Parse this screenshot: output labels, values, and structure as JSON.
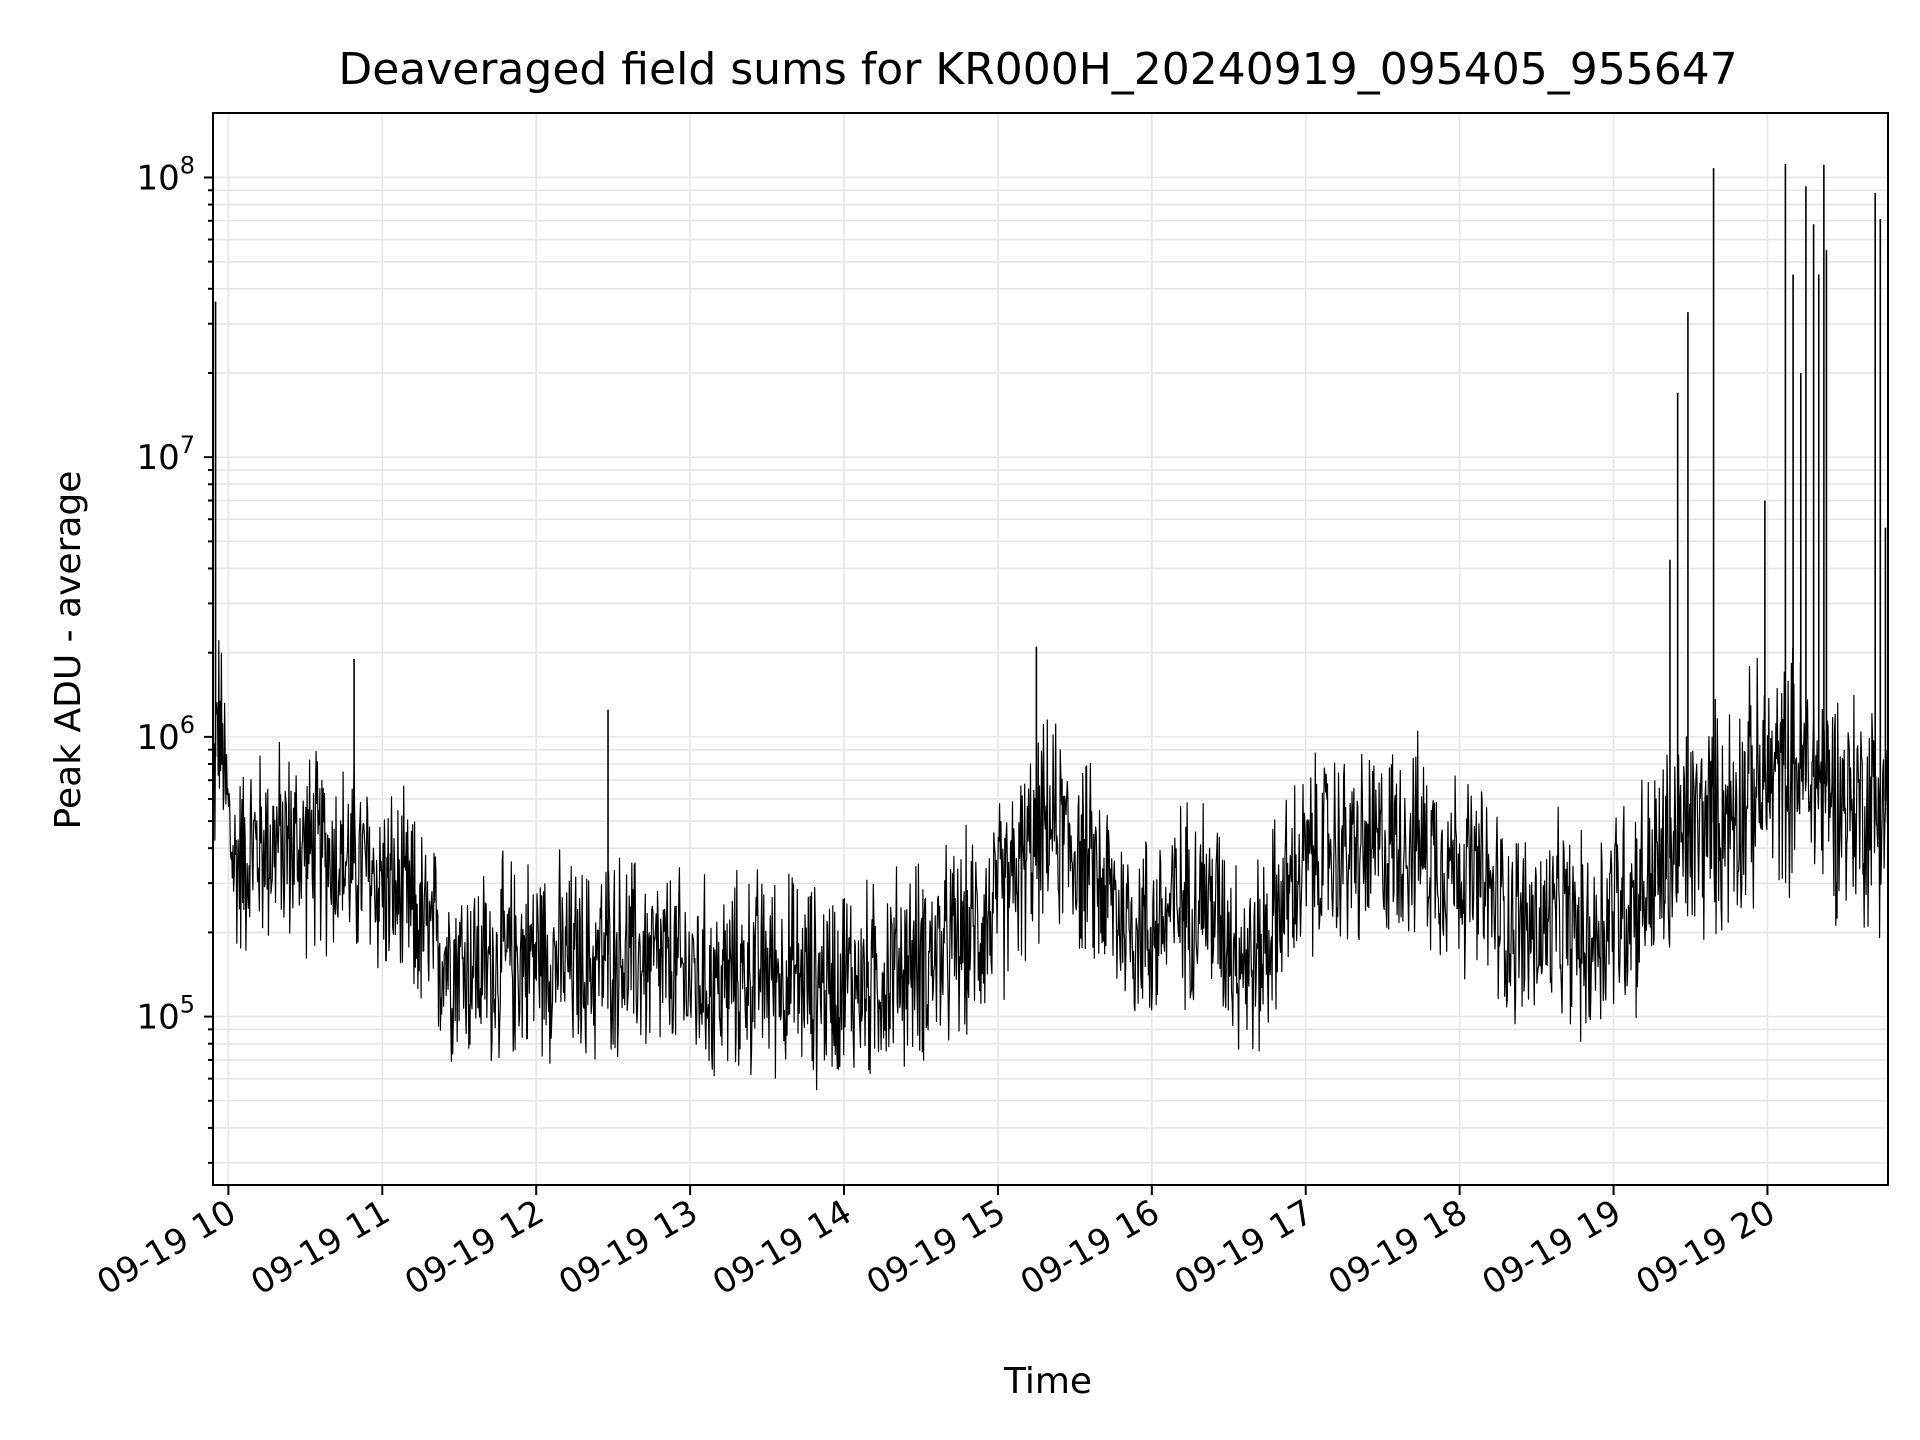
{
  "chart_data": {
    "type": "line",
    "title": "Deaveraged field sums for KR000H_20240919_095405_955647",
    "xlabel": "Time",
    "ylabel": "Peak ADU - average",
    "yscale": "log",
    "grid": true,
    "grid_minor_y": true,
    "line_color": "#000000",
    "xlim": [
      "2024-09-19 09:54",
      "2024-09-19 20:47"
    ],
    "ylim": [
      25000,
      170000000
    ],
    "x_ticks": [
      {
        "value": "2024-09-19 10:00",
        "label": "09-19 10"
      },
      {
        "value": "2024-09-19 11:00",
        "label": "09-19 11"
      },
      {
        "value": "2024-09-19 12:00",
        "label": "09-19 12"
      },
      {
        "value": "2024-09-19 13:00",
        "label": "09-19 13"
      },
      {
        "value": "2024-09-19 14:00",
        "label": "09-19 14"
      },
      {
        "value": "2024-09-19 15:00",
        "label": "09-19 15"
      },
      {
        "value": "2024-09-19 16:00",
        "label": "09-19 16"
      },
      {
        "value": "2024-09-19 17:00",
        "label": "09-19 17"
      },
      {
        "value": "2024-09-19 18:00",
        "label": "09-19 18"
      },
      {
        "value": "2024-09-19 19:00",
        "label": "09-19 19"
      },
      {
        "value": "2024-09-19 20:00",
        "label": "09-19 20"
      }
    ],
    "y_ticks": [
      {
        "value": 100000,
        "base": "10",
        "exp": "5"
      },
      {
        "value": 1000000,
        "base": "10",
        "exp": "6"
      },
      {
        "value": 10000000,
        "base": "10",
        "exp": "7"
      },
      {
        "value": 100000000,
        "base": "10",
        "exp": "8"
      }
    ],
    "series": [
      {
        "color": "#000000",
        "x": [
          "2024-09-19 09:54",
          "2024-09-19 09:56",
          "2024-09-19 09:58",
          "2024-09-19 10:02",
          "2024-09-19 10:10",
          "2024-09-19 10:20",
          "2024-09-19 10:30",
          "2024-09-19 10:40",
          "2024-09-19 10:50",
          "2024-09-19 11:00",
          "2024-09-19 11:10",
          "2024-09-19 11:20",
          "2024-09-19 11:30",
          "2024-09-19 11:40",
          "2024-09-19 11:50",
          "2024-09-19 12:00",
          "2024-09-19 12:10",
          "2024-09-19 12:20",
          "2024-09-19 12:30",
          "2024-09-19 12:40",
          "2024-09-19 12:50",
          "2024-09-19 13:00",
          "2024-09-19 13:10",
          "2024-09-19 13:20",
          "2024-09-19 13:30",
          "2024-09-19 13:40",
          "2024-09-19 13:50",
          "2024-09-19 14:00",
          "2024-09-19 14:10",
          "2024-09-19 14:20",
          "2024-09-19 14:30",
          "2024-09-19 14:40",
          "2024-09-19 14:50",
          "2024-09-19 15:00",
          "2024-09-19 15:10",
          "2024-09-19 15:20",
          "2024-09-19 15:30",
          "2024-09-19 15:40",
          "2024-09-19 15:50",
          "2024-09-19 16:00",
          "2024-09-19 16:10",
          "2024-09-19 16:20",
          "2024-09-19 16:30",
          "2024-09-19 16:40",
          "2024-09-19 16:50",
          "2024-09-19 17:00",
          "2024-09-19 17:10",
          "2024-09-19 17:20",
          "2024-09-19 17:30",
          "2024-09-19 17:40",
          "2024-09-19 17:50",
          "2024-09-19 18:00",
          "2024-09-19 18:10",
          "2024-09-19 18:20",
          "2024-09-19 18:30",
          "2024-09-19 18:40",
          "2024-09-19 18:50",
          "2024-09-19 19:00",
          "2024-09-19 19:10",
          "2024-09-19 19:20",
          "2024-09-19 19:30",
          "2024-09-19 19:40",
          "2024-09-19 19:50",
          "2024-09-19 20:00",
          "2024-09-19 20:10",
          "2024-09-19 20:20",
          "2024-09-19 20:30",
          "2024-09-19 20:40",
          "2024-09-19 20:47"
        ],
        "y": [
          600000,
          1200000,
          800000,
          350000,
          400000,
          420000,
          400000,
          380000,
          350000,
          300000,
          250000,
          180000,
          160000,
          150000,
          160000,
          170000,
          160000,
          150000,
          170000,
          160000,
          150000,
          140000,
          130000,
          140000,
          150000,
          140000,
          130000,
          140000,
          130000,
          150000,
          160000,
          170000,
          200000,
          250000,
          350000,
          500000,
          400000,
          300000,
          220000,
          200000,
          250000,
          280000,
          200000,
          150000,
          250000,
          350000,
          400000,
          380000,
          400000,
          450000,
          380000,
          350000,
          280000,
          220000,
          200000,
          220000,
          180000,
          250000,
          280000,
          350000,
          450000,
          500000,
          600000,
          700000,
          800000,
          700000,
          600000,
          550000,
          600000
        ]
      }
    ],
    "spikes": [
      {
        "x": "2024-09-19 09:55",
        "y": 36000000
      },
      {
        "x": "2024-09-19 10:49",
        "y": 1900000
      },
      {
        "x": "2024-09-19 12:28",
        "y": 1250000
      },
      {
        "x": "2024-09-19 15:15",
        "y": 2100000
      },
      {
        "x": "2024-09-19 19:22",
        "y": 4300000
      },
      {
        "x": "2024-09-19 19:25",
        "y": 17000000
      },
      {
        "x": "2024-09-19 19:29",
        "y": 33000000
      },
      {
        "x": "2024-09-19 19:39",
        "y": 108000000
      },
      {
        "x": "2024-09-19 19:59",
        "y": 7000000
      },
      {
        "x": "2024-09-19 20:07",
        "y": 112000000
      },
      {
        "x": "2024-09-19 20:10",
        "y": 45000000
      },
      {
        "x": "2024-09-19 20:13",
        "y": 20000000
      },
      {
        "x": "2024-09-19 20:15",
        "y": 93000000
      },
      {
        "x": "2024-09-19 20:18",
        "y": 68000000
      },
      {
        "x": "2024-09-19 20:20",
        "y": 45000000
      },
      {
        "x": "2024-09-19 20:22",
        "y": 111000000
      },
      {
        "x": "2024-09-19 20:23",
        "y": 55000000
      },
      {
        "x": "2024-09-19 20:42",
        "y": 88000000
      },
      {
        "x": "2024-09-19 20:44",
        "y": 71000000
      },
      {
        "x": "2024-09-19 20:46",
        "y": 5600000
      }
    ]
  }
}
